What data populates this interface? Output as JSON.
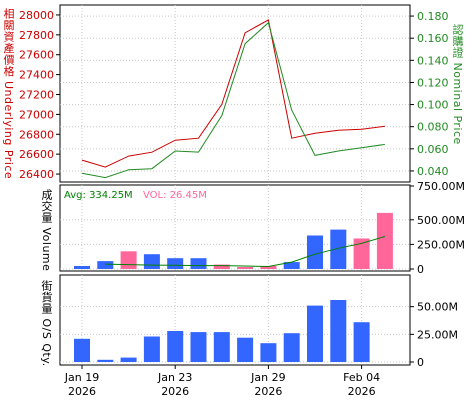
{
  "colors": {
    "underlying_line": "#cc0000",
    "nominal_line": "#228b22",
    "left_axis_text": "#cc0000",
    "right_axis_text": "#228b22",
    "bar_blue": "#3366ff",
    "bar_pink": "#ff6699",
    "avg_text": "#008000",
    "vol_text": "#ff6699",
    "avg_line": "#008000",
    "grid": "#c8c8c8",
    "frame": "#000000"
  },
  "labels": {
    "left_axis_price": "相關資產價格 Underlying Price",
    "right_axis_price": "認購證 Nominal Price",
    "volume_axis": "成交量 Volume",
    "outstanding_axis": "街貨量 O/S Qty.",
    "avg_text": "Avg: 334.25M",
    "vol_text": "VOL: 26.45M"
  },
  "chart_data": [
    {
      "type": "line",
      "x": [
        "2026-01-19",
        "2026-01-20",
        "2026-01-21",
        "2026-01-22",
        "2026-01-23",
        "2026-01-26",
        "2026-01-27",
        "2026-01-28",
        "2026-01-29",
        "2026-01-30",
        "2026-02-02",
        "2026-02-03",
        "2026-02-04",
        "2026-02-05"
      ],
      "series": [
        {
          "name": "Underlying Price",
          "axis": "left",
          "values": [
            26540,
            26470,
            26580,
            26620,
            26740,
            26760,
            27100,
            27820,
            27950,
            26760,
            26810,
            26840,
            26850,
            26880
          ]
        },
        {
          "name": "Nominal Price",
          "axis": "right",
          "values": [
            0.038,
            0.034,
            0.041,
            0.042,
            0.058,
            0.057,
            0.09,
            0.155,
            0.174,
            0.095,
            0.054,
            0.058,
            0.061,
            0.064
          ]
        }
      ],
      "ylim_left": [
        26320,
        28100
      ],
      "ylim_right": [
        0.03,
        0.19
      ],
      "yticks_left": [
        "28000",
        "27800",
        "27600",
        "27400",
        "27200",
        "27000",
        "26800",
        "26600",
        "26400"
      ],
      "yticks_right": [
        "0.180",
        "0.160",
        "0.140",
        "0.120",
        "0.100",
        "0.080",
        "0.060",
        "0.040"
      ]
    },
    {
      "type": "bar",
      "categories": [
        "2026-01-19",
        "2026-01-20",
        "2026-01-21",
        "2026-01-22",
        "2026-01-23",
        "2026-01-26",
        "2026-01-27",
        "2026-01-28",
        "2026-01-29",
        "2026-01-30",
        "2026-02-02",
        "2026-02-03",
        "2026-02-04",
        "2026-02-05"
      ],
      "values": [
        30,
        80,
        180,
        150,
        110,
        110,
        45,
        20,
        30,
        70,
        340,
        400,
        310,
        570
      ],
      "bar_colors": [
        "blue",
        "blue",
        "pink",
        "blue",
        "blue",
        "blue",
        "pink",
        "pink",
        "pink",
        "blue",
        "blue",
        "blue",
        "pink",
        "pink"
      ],
      "avg_line": [
        50,
        45,
        40,
        38,
        35,
        35,
        30,
        25,
        70,
        150,
        210,
        260,
        330
      ],
      "unit": "M",
      "ylim": [
        0,
        650
      ],
      "yticks": [
        "750.00M",
        "500.00M",
        "250.00M",
        "0"
      ]
    },
    {
      "type": "bar",
      "categories": [
        "2026-01-19",
        "2026-01-20",
        "2026-01-21",
        "2026-01-22",
        "2026-01-23",
        "2026-01-26",
        "2026-01-27",
        "2026-01-28",
        "2026-01-29",
        "2026-01-30",
        "2026-02-02",
        "2026-02-03",
        "2026-02-04"
      ],
      "values": [
        21,
        2,
        4,
        23,
        28,
        27,
        27,
        22,
        17,
        26,
        51,
        56,
        36
      ],
      "unit": "M",
      "ylim": [
        0,
        75
      ],
      "yticks": [
        "50.00M",
        "25.00M",
        "0"
      ]
    }
  ],
  "x_ticks": [
    {
      "date": "2026-01-19",
      "line1": "Jan 19",
      "line2": "2026"
    },
    {
      "date": "2026-01-23",
      "line1": "Jan 23",
      "line2": "2026"
    },
    {
      "date": "2026-01-29",
      "line1": "Jan 29",
      "line2": "2026"
    },
    {
      "date": "2026-02-04",
      "line1": "Feb 04",
      "line2": "2026"
    }
  ]
}
